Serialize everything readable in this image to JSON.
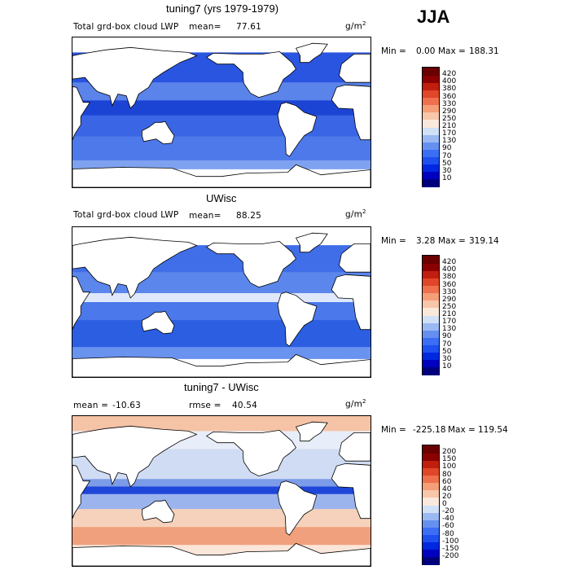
{
  "season": "JJA",
  "unit": {
    "base": "g/m",
    "exp": "2"
  },
  "panels": [
    {
      "title": "tuning7 (yrs 1979-1979)",
      "label": "Total grd-box cloud LWP",
      "mean_label": "mean=",
      "mean_value": "77.61",
      "min_label": "Min =",
      "min_value": "0.00",
      "max_label": "Max =",
      "max_value": "188.31"
    },
    {
      "title": "UWisc",
      "label": "Total grd-box cloud LWP",
      "mean_label": "mean=",
      "mean_value": "88.25",
      "min_label": "Min =",
      "min_value": "3.28",
      "max_label": "Max =",
      "max_value": "319.14"
    },
    {
      "title": "tuning7 - UWisc",
      "mean_label": "mean =",
      "mean_value": "-10.63",
      "rmse_label": "rmse =",
      "rmse_value": "40.54",
      "min_label": "Min =",
      "min_value": "-225.18",
      "max_label": "Max =",
      "max_value": "119.54"
    }
  ],
  "chart_data": [
    {
      "type": "heatmap",
      "title": "tuning7 (yrs 1979-1979)",
      "variable": "Total grd-box cloud LWP",
      "units": "g/m^2",
      "mean": 77.61,
      "min": 0.0,
      "max": 188.31,
      "levels": [
        10,
        30,
        50,
        70,
        90,
        130,
        170,
        210,
        250,
        290,
        330,
        360,
        380,
        400,
        420
      ],
      "colors": [
        "#00007f",
        "#0000c0",
        "#0028e0",
        "#1e50f0",
        "#3c6ef5",
        "#6690f0",
        "#9ab8f2",
        "#cfe0f7",
        "#fbe8dc",
        "#f8c6a8",
        "#f59e78",
        "#ee704c",
        "#e04628",
        "#c01e0e",
        "#8c0000",
        "#6a0000"
      ]
    },
    {
      "type": "heatmap",
      "title": "UWisc",
      "variable": "Total grd-box cloud LWP",
      "units": "g/m^2",
      "mean": 88.25,
      "min": 3.28,
      "max": 319.14,
      "levels": [
        10,
        30,
        50,
        70,
        90,
        130,
        170,
        210,
        250,
        290,
        330,
        360,
        380,
        400,
        420
      ],
      "colors": [
        "#00007f",
        "#0000c0",
        "#0028e0",
        "#1e50f0",
        "#3c6ef5",
        "#6690f0",
        "#9ab8f2",
        "#cfe0f7",
        "#fbe8dc",
        "#f8c6a8",
        "#f59e78",
        "#ee704c",
        "#e04628",
        "#c01e0e",
        "#8c0000",
        "#6a0000"
      ]
    },
    {
      "type": "heatmap",
      "title": "tuning7 - UWisc",
      "units": "g/m^2",
      "mean": -10.63,
      "rmse": 40.54,
      "min": -225.18,
      "max": 119.54,
      "levels": [
        -200,
        -150,
        -100,
        -80,
        -60,
        -40,
        -20,
        0,
        20,
        40,
        60,
        80,
        100,
        150,
        200
      ],
      "colors": [
        "#00007f",
        "#0000c0",
        "#0028e0",
        "#1e50f0",
        "#3c6ef5",
        "#6690f0",
        "#9ab8f2",
        "#cfe0f7",
        "#fbe8dc",
        "#f8c6a8",
        "#f59e78",
        "#ee704c",
        "#e04628",
        "#c01e0e",
        "#8c0000",
        "#6a0000"
      ]
    }
  ]
}
